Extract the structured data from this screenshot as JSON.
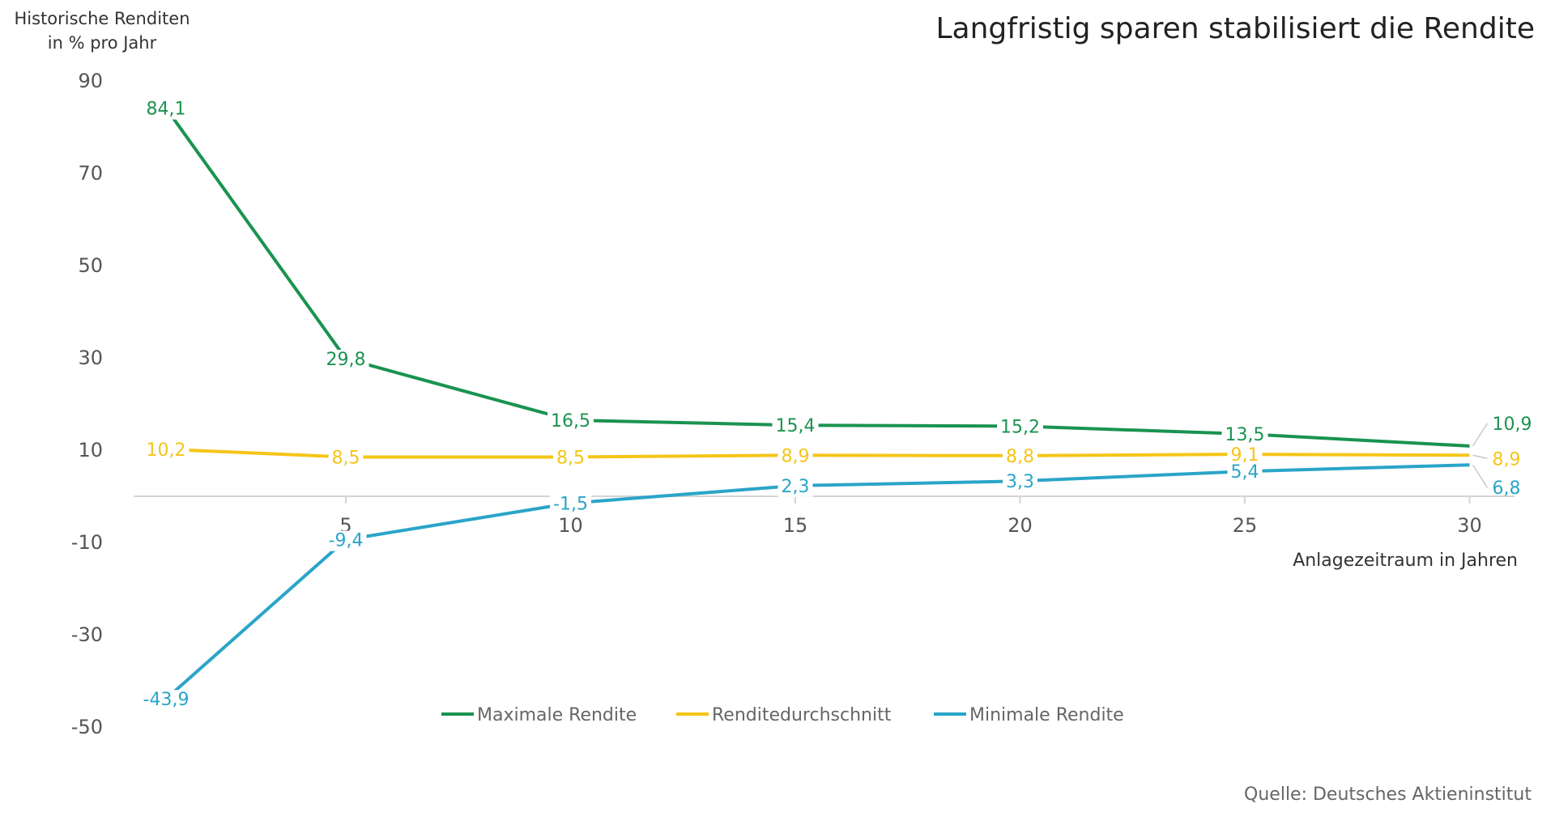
{
  "chart_data": {
    "type": "line",
    "title": "Langfristig sparen stabilisiert die Rendite",
    "ylabel_lines": [
      "Historische Renditen",
      "in % pro Jahr"
    ],
    "xlabel": "Anlagezeitraum in Jahren",
    "source": "Quelle: Deutsches Aktieninstitut",
    "ylim": [
      -50,
      90
    ],
    "yticks": [
      90,
      70,
      50,
      30,
      10,
      -10,
      -30,
      -50
    ],
    "xlim": [
      1,
      31
    ],
    "xticks": [
      5,
      10,
      15,
      20,
      25,
      30
    ],
    "x": [
      1,
      5,
      10,
      15,
      20,
      25,
      30
    ],
    "grid": false,
    "legend_position": "bottom",
    "series": [
      {
        "name": "Maximale Rendite",
        "color": "#1a9350",
        "values": [
          84.1,
          29.8,
          16.5,
          15.4,
          15.2,
          13.5,
          10.9
        ],
        "labels": [
          "84,1",
          "29,8",
          "16,5",
          "15,4",
          "15,2",
          "13,5",
          "10,9"
        ]
      },
      {
        "name": "Renditedurchschnitt",
        "color": "#f5c518",
        "values": [
          10.2,
          8.5,
          8.5,
          8.9,
          8.8,
          9.1,
          8.9
        ],
        "labels": [
          "10,2",
          "8,5",
          "8,5",
          "8,9",
          "8,8",
          "9,1",
          "8,9"
        ]
      },
      {
        "name": "Minimale Rendite",
        "color": "#2aa5c8",
        "values": [
          -43.9,
          -9.4,
          -1.5,
          2.3,
          3.3,
          5.4,
          6.8
        ],
        "labels": [
          "-43,9",
          "-9,4",
          "-1,5",
          "2,3",
          "3,3",
          "5,4",
          "6,8"
        ]
      }
    ]
  }
}
